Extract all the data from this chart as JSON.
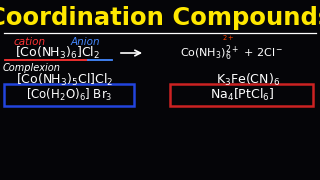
{
  "bg_color": "#050508",
  "title": "Coordination Compounds",
  "title_color": "#FFE800",
  "title_fontsize": 17.5,
  "line_color": "#FFFFFF",
  "cation_text": "cation",
  "cation_color": "#FF3333",
  "anion_text": "Anion",
  "anion_color": "#4488FF",
  "superscript_2plus_color": "#FF4400",
  "complexion_color": "#FFFFFF",
  "formula_color": "#FFFFFF",
  "formula3_box_color": "#2244DD",
  "rhs3_box_color": "#CC2222"
}
